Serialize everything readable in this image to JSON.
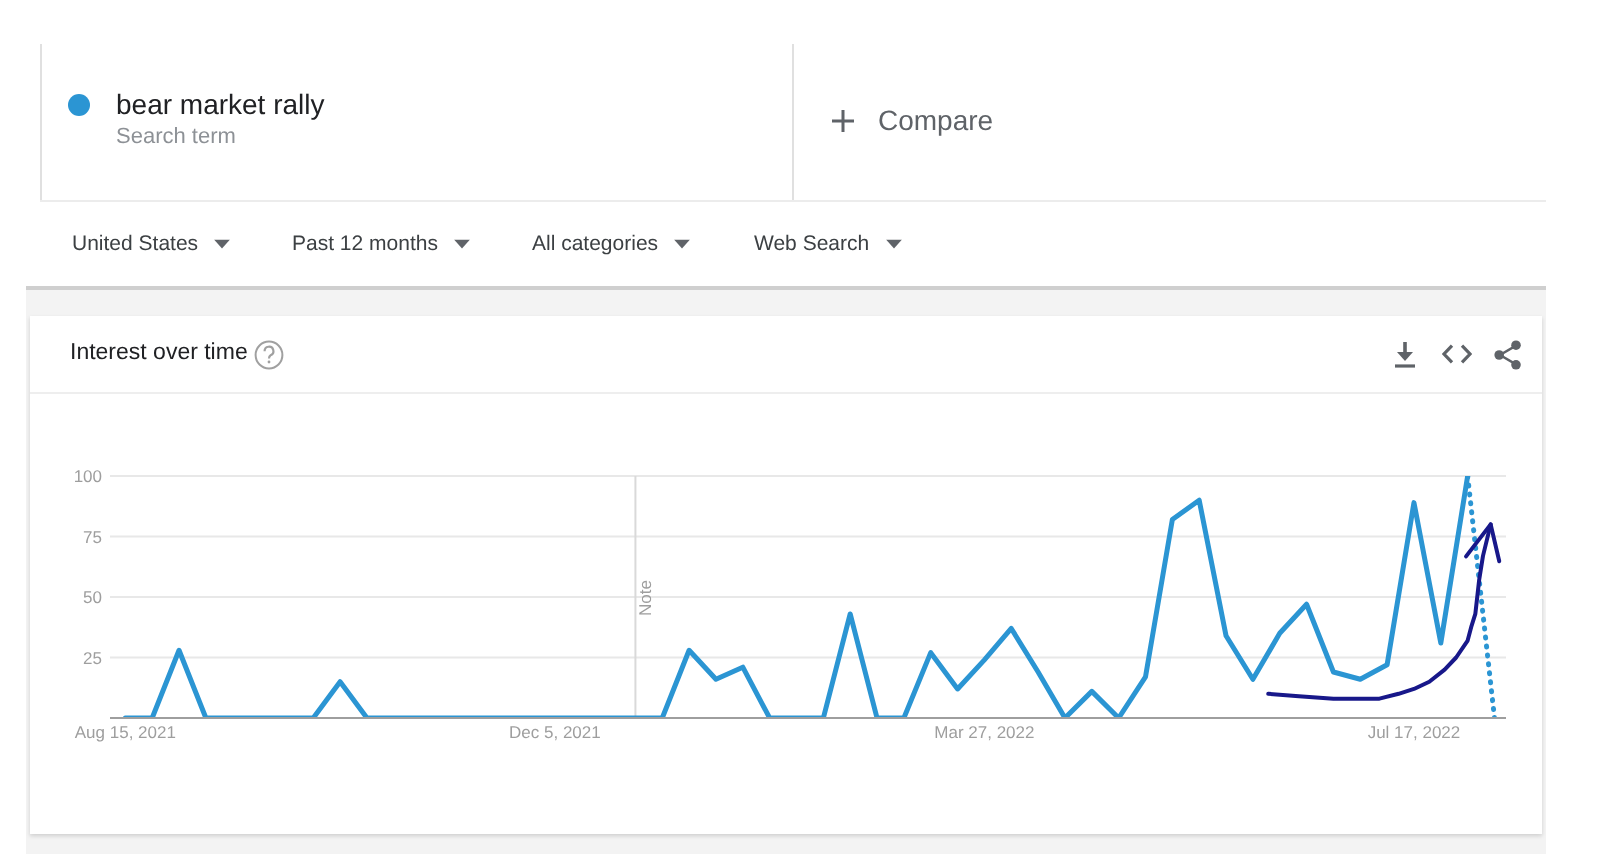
{
  "chart_data": {
    "type": "line",
    "title": "Interest over time",
    "annotations": [
      "Search term",
      "Compare",
      "United States",
      "Past 12 months",
      "All categories",
      "Web Search"
    ],
    "x": [
      "2021-08-15",
      "2021-08-22",
      "2021-08-29",
      "2021-09-05",
      "2021-09-12",
      "2021-09-19",
      "2021-09-26",
      "2021-10-03",
      "2021-10-10",
      "2021-10-17",
      "2021-10-24",
      "2021-10-31",
      "2021-11-07",
      "2021-11-14",
      "2021-11-21",
      "2021-11-28",
      "2021-12-05",
      "2021-12-12",
      "2021-12-19",
      "2021-12-26",
      "2022-01-02",
      "2022-01-09",
      "2022-01-16",
      "2022-01-23",
      "2022-01-30",
      "2022-02-06",
      "2022-02-13",
      "2022-02-20",
      "2022-02-27",
      "2022-03-06",
      "2022-03-13",
      "2022-03-20",
      "2022-03-27",
      "2022-04-03",
      "2022-04-10",
      "2022-04-17",
      "2022-04-24",
      "2022-05-01",
      "2022-05-08",
      "2022-05-15",
      "2022-05-22",
      "2022-05-29",
      "2022-06-05",
      "2022-06-12",
      "2022-06-19",
      "2022-06-26",
      "2022-07-03",
      "2022-07-10",
      "2022-07-17",
      "2022-07-24",
      "2022-07-31",
      "2022-08-07"
    ],
    "series": [
      {
        "name": "bear market rally",
        "color": "#2b95d3",
        "values": [
          0,
          0,
          28,
          0,
          0,
          0,
          0,
          0,
          15,
          0,
          0,
          0,
          0,
          0,
          0,
          0,
          0,
          0,
          0,
          0,
          0,
          28,
          16,
          21,
          0,
          0,
          0,
          43,
          0,
          0,
          27,
          12,
          24,
          37,
          19,
          0,
          11,
          0,
          17,
          82,
          90,
          34,
          16,
          35,
          47,
          19,
          16,
          22,
          89,
          31,
          100,
          null
        ]
      },
      {
        "color": "#2b95d3",
        "line_style": "dotted",
        "values": [
          null,
          null,
          null,
          null,
          null,
          null,
          null,
          null,
          null,
          null,
          null,
          null,
          null,
          null,
          null,
          null,
          null,
          null,
          null,
          null,
          null,
          null,
          null,
          null,
          null,
          null,
          null,
          null,
          null,
          null,
          null,
          null,
          null,
          null,
          null,
          null,
          null,
          null,
          null,
          null,
          null,
          null,
          null,
          null,
          null,
          null,
          null,
          null,
          null,
          null,
          100,
          0
        ]
      },
      {
        "type": "line",
        "color": "#18188a",
        "x": [
          "2022-06-09",
          "2022-06-17",
          "2022-06-26",
          "2022-07-08",
          "2022-07-13",
          "2022-07-17",
          "2022-07-21",
          "2022-07-25",
          "2022-07-28",
          "2022-07-31",
          "2022-08-01",
          "2022-08-02",
          "2022-08-03",
          "2022-08-04",
          "2022-08-06"
        ],
        "values": [
          10,
          9,
          8,
          8,
          10,
          12,
          15,
          20,
          25,
          32,
          38,
          43,
          57,
          67,
          80
        ]
      }
    ],
    "xlim": [
      "2021-08-11",
      "2022-08-10"
    ],
    "xticks": [
      {
        "value": "2021-08-15",
        "label": "Aug 15, 2021"
      },
      {
        "value": "2021-12-05",
        "label": "Dec 5, 2021"
      },
      {
        "value": "2022-03-27",
        "label": "Mar 27, 2022"
      },
      {
        "value": "2022-07-17",
        "label": "Jul 17, 2022"
      }
    ],
    "ylim": [
      0,
      100
    ],
    "yticks": [
      25,
      50,
      75,
      100
    ],
    "grid": "y",
    "legend": "top left",
    "marker": "none",
    "line_style": "solid",
    "ref_lines": [
      {
        "axis": "x",
        "value": "2021-12-26",
        "label": "Note"
      }
    ]
  }
}
